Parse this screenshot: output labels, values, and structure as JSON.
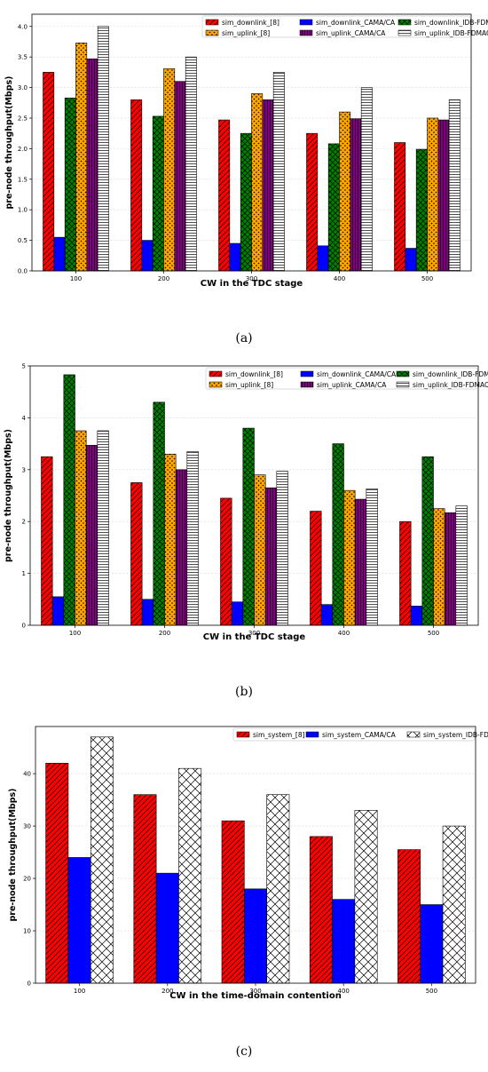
{
  "chart_data": [
    {
      "type": "bar",
      "caption": "(a)",
      "categories": [
        "100",
        "200",
        "300",
        "400",
        "500"
      ],
      "xlabel": "CW in the TDC stage",
      "ylabel": "pre-node throughput(Mbps)",
      "ylim": [
        0,
        4.2
      ],
      "yticks": [
        "0.0",
        "0.5",
        "1.0",
        "1.5",
        "2.0",
        "2.5",
        "3.0",
        "3.5",
        "4.0"
      ],
      "grid": true,
      "legend_position": "top-right",
      "series": [
        {
          "name": "sim_downlink_[8]",
          "color": "#ff0000",
          "hatch": "diag",
          "values": [
            3.25,
            2.8,
            2.47,
            2.25,
            2.1
          ]
        },
        {
          "name": "sim_downlink_CAMA/CA",
          "color": "#0000ff",
          "hatch": "none",
          "values": [
            0.55,
            0.5,
            0.45,
            0.41,
            0.37
          ]
        },
        {
          "name": "sim_downlink_IDB-FDMAC",
          "color": "#008000",
          "hatch": "cross",
          "values": [
            2.83,
            2.53,
            2.25,
            2.08,
            1.99
          ]
        },
        {
          "name": "sim_uplink_[8]",
          "color": "#ffa500",
          "hatch": "dots",
          "values": [
            3.73,
            3.31,
            2.9,
            2.6,
            2.5
          ]
        },
        {
          "name": "sim_uplink_CAMA/CA",
          "color": "#800080",
          "hatch": "vlines",
          "values": [
            3.47,
            3.1,
            2.8,
            2.49,
            2.47
          ]
        },
        {
          "name": "sim_uplink_IDB-FDMAC",
          "color": "#ffffff",
          "hatch": "hlines",
          "values": [
            4.0,
            3.5,
            3.25,
            3.0,
            2.8
          ]
        }
      ]
    },
    {
      "type": "bar",
      "caption": "(b)",
      "categories": [
        "100",
        "200",
        "300",
        "400",
        "500"
      ],
      "xlabel": "CW in the TDC stage",
      "ylabel": "pre-node throughput(Mbps)",
      "ylim": [
        0,
        5.0
      ],
      "yticks": [
        "0",
        "1",
        "2",
        "3",
        "4",
        "5"
      ],
      "grid": true,
      "legend_position": "top-right",
      "series": [
        {
          "name": "sim_downlink_[8]",
          "color": "#ff0000",
          "hatch": "diag",
          "values": [
            3.25,
            2.75,
            2.45,
            2.2,
            2.0
          ]
        },
        {
          "name": "sim_downlink_CAMA/CA",
          "color": "#0000ff",
          "hatch": "none",
          "values": [
            0.55,
            0.5,
            0.45,
            0.4,
            0.37
          ]
        },
        {
          "name": "sim_downlink_IDB-FDMAC",
          "color": "#008000",
          "hatch": "cross",
          "values": [
            4.83,
            4.3,
            3.8,
            3.5,
            3.25
          ]
        },
        {
          "name": "sim_uplink_[8]",
          "color": "#ffa500",
          "hatch": "dots",
          "values": [
            3.75,
            3.3,
            2.9,
            2.6,
            2.25
          ]
        },
        {
          "name": "sim_uplink_CAMA/CA",
          "color": "#800080",
          "hatch": "vlines",
          "values": [
            3.47,
            3.0,
            2.65,
            2.43,
            2.17
          ]
        },
        {
          "name": "sim_uplink_IDB-FDMAC",
          "color": "#ffffff",
          "hatch": "hlines",
          "values": [
            3.75,
            3.35,
            2.97,
            2.63,
            2.3
          ]
        }
      ]
    },
    {
      "type": "bar",
      "caption": "(c)",
      "categories": [
        "100",
        "200",
        "300",
        "400",
        "500"
      ],
      "xlabel": "CW in the time-domain contention",
      "ylabel": "pre-node throughput(Mbps)",
      "ylim": [
        0,
        49
      ],
      "yticks": [
        "0",
        "10",
        "20",
        "30",
        "40"
      ],
      "grid": true,
      "legend_position": "top-right",
      "series": [
        {
          "name": "sim_system_[8]",
          "color": "#ff0000",
          "hatch": "diag",
          "values": [
            42,
            36,
            31,
            28,
            25.5
          ]
        },
        {
          "name": "sim_system_CAMA/CA",
          "color": "#0000ff",
          "hatch": "none",
          "values": [
            24,
            21,
            18,
            16,
            15
          ]
        },
        {
          "name": "sim_system_IDB-FDMAC",
          "color": "#ffffff",
          "hatch": "crossthin",
          "values": [
            47,
            41,
            36,
            33,
            30
          ]
        }
      ]
    }
  ]
}
